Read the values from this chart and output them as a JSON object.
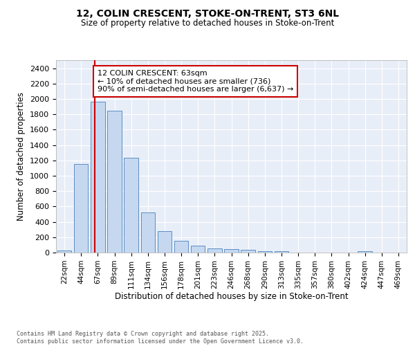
{
  "title1": "12, COLIN CRESCENT, STOKE-ON-TRENT, ST3 6NL",
  "title2": "Size of property relative to detached houses in Stoke-on-Trent",
  "xlabel": "Distribution of detached houses by size in Stoke-on-Trent",
  "ylabel": "Number of detached properties",
  "bar_labels": [
    "22sqm",
    "44sqm",
    "67sqm",
    "89sqm",
    "111sqm",
    "134sqm",
    "156sqm",
    "178sqm",
    "201sqm",
    "223sqm",
    "246sqm",
    "268sqm",
    "290sqm",
    "313sqm",
    "335sqm",
    "357sqm",
    "380sqm",
    "402sqm",
    "424sqm",
    "447sqm",
    "469sqm"
  ],
  "bar_values": [
    30,
    1150,
    1960,
    1850,
    1230,
    520,
    275,
    150,
    90,
    50,
    42,
    35,
    22,
    18,
    0,
    0,
    0,
    0,
    18,
    0,
    0
  ],
  "bar_color": "#c5d8f0",
  "bar_edge_color": "#5b8ec4",
  "background_color": "#e8eef8",
  "grid_color": "#ffffff",
  "annotation_text": "12 COLIN CRESCENT: 63sqm\n← 10% of detached houses are smaller (736)\n90% of semi-detached houses are larger (6,637) →",
  "annotation_box_color": "#ffffff",
  "annotation_box_edge": "#cc0000",
  "vline_color": "#cc0000",
  "ylim": [
    0,
    2500
  ],
  "yticks": [
    0,
    200,
    400,
    600,
    800,
    1000,
    1200,
    1400,
    1600,
    1800,
    2000,
    2200,
    2400
  ],
  "footer1": "Contains HM Land Registry data © Crown copyright and database right 2025.",
  "footer2": "Contains public sector information licensed under the Open Government Licence v3.0."
}
